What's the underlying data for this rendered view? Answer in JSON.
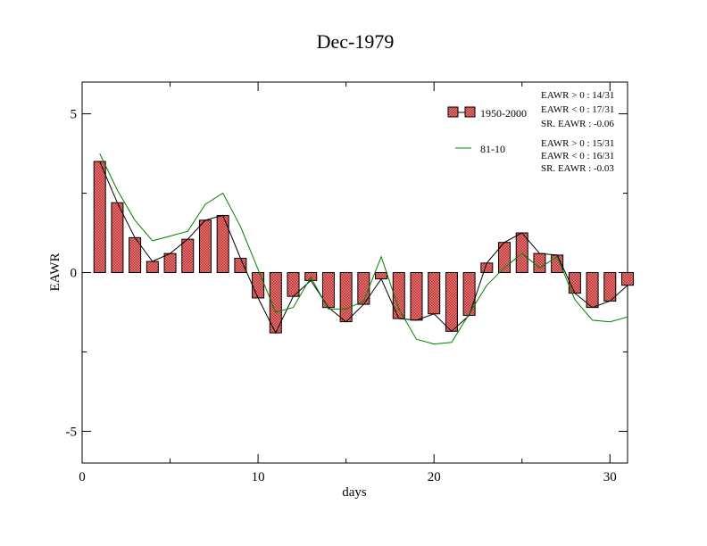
{
  "chart_data": {
    "type": "bar",
    "title": "Dec-1979",
    "xlabel": "days",
    "ylabel": "EAWR",
    "xlim": [
      0,
      31
    ],
    "ylim": [
      -6,
      6
    ],
    "x_ticks": [
      0,
      10,
      20,
      30
    ],
    "y_ticks": [
      -5,
      0,
      5
    ],
    "grid": false,
    "legend_position": "top-right",
    "colors": {
      "bar_fill": "#f08080",
      "bar_hatch": "#b03030",
      "bar_line": "#000000",
      "clim_line": "#008000"
    },
    "x": [
      1,
      2,
      3,
      4,
      5,
      6,
      7,
      8,
      9,
      10,
      11,
      12,
      13,
      14,
      15,
      16,
      17,
      18,
      19,
      20,
      21,
      22,
      23,
      24,
      25,
      26,
      27,
      28,
      29,
      30,
      31
    ],
    "series": [
      {
        "name": "1950-2000",
        "style": "bars-with-line",
        "values": [
          3.5,
          2.2,
          1.1,
          0.35,
          0.6,
          1.05,
          1.65,
          1.8,
          0.45,
          -0.8,
          -1.9,
          -0.75,
          -0.25,
          -1.1,
          -1.55,
          -1.0,
          -0.2,
          -1.45,
          -1.5,
          -1.3,
          -1.85,
          -1.35,
          0.3,
          0.95,
          1.25,
          0.6,
          0.55,
          -0.65,
          -1.1,
          -0.9,
          -0.4
        ]
      },
      {
        "name": "81-10",
        "style": "line",
        "values": [
          3.75,
          2.6,
          1.65,
          1.0,
          1.15,
          1.3,
          2.15,
          2.5,
          1.45,
          0.1,
          -1.25,
          -1.1,
          -0.15,
          -1.15,
          -1.15,
          -0.9,
          0.5,
          -1.15,
          -2.1,
          -2.25,
          -2.2,
          -1.3,
          -0.4,
          0.15,
          0.6,
          0.15,
          0.5,
          -0.85,
          -1.5,
          -1.55,
          -1.4
        ]
      }
    ],
    "stats": {
      "group1": [
        "EAWR > 0 : 14/31",
        "EAWR < 0 : 17/31",
        "SR. EAWR : -0.06"
      ],
      "group2": [
        "EAWR > 0 : 15/31",
        "EAWR < 0 : 16/31",
        "SR. EAWR : -0.03"
      ]
    }
  }
}
